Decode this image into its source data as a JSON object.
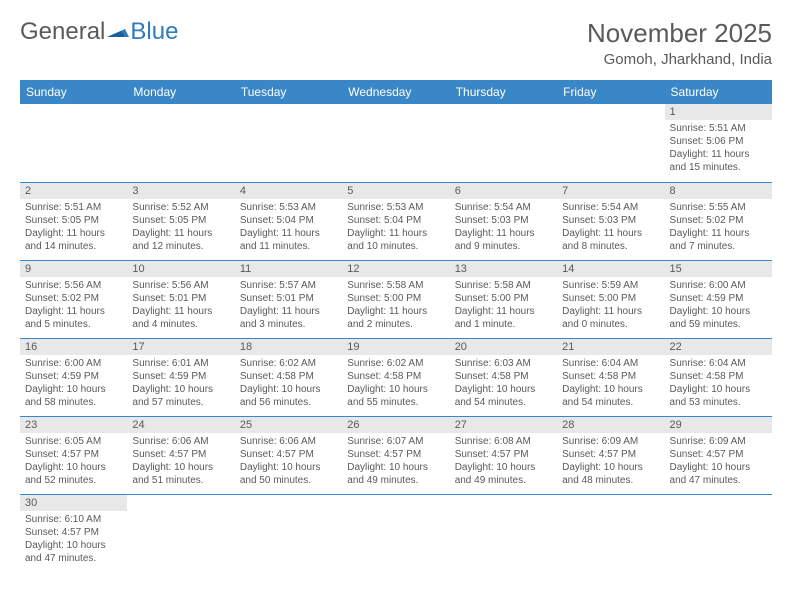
{
  "logo": {
    "part1": "General",
    "part2": "Blue"
  },
  "title": "November 2025",
  "location": "Gomoh, Jharkhand, India",
  "colors": {
    "header_bg": "#3a87c8",
    "header_fg": "#ffffff",
    "daynum_bg": "#e8e8e8",
    "text": "#5a5a5a",
    "rule": "#3a87c8",
    "logo_blue": "#2f7bbf"
  },
  "day_names": [
    "Sunday",
    "Monday",
    "Tuesday",
    "Wednesday",
    "Thursday",
    "Friday",
    "Saturday"
  ],
  "weeks": [
    [
      null,
      null,
      null,
      null,
      null,
      null,
      {
        "n": "1",
        "sr": "5:51 AM",
        "ss": "5:06 PM",
        "dl": "11 hours and 15 minutes."
      }
    ],
    [
      {
        "n": "2",
        "sr": "5:51 AM",
        "ss": "5:05 PM",
        "dl": "11 hours and 14 minutes."
      },
      {
        "n": "3",
        "sr": "5:52 AM",
        "ss": "5:05 PM",
        "dl": "11 hours and 12 minutes."
      },
      {
        "n": "4",
        "sr": "5:53 AM",
        "ss": "5:04 PM",
        "dl": "11 hours and 11 minutes."
      },
      {
        "n": "5",
        "sr": "5:53 AM",
        "ss": "5:04 PM",
        "dl": "11 hours and 10 minutes."
      },
      {
        "n": "6",
        "sr": "5:54 AM",
        "ss": "5:03 PM",
        "dl": "11 hours and 9 minutes."
      },
      {
        "n": "7",
        "sr": "5:54 AM",
        "ss": "5:03 PM",
        "dl": "11 hours and 8 minutes."
      },
      {
        "n": "8",
        "sr": "5:55 AM",
        "ss": "5:02 PM",
        "dl": "11 hours and 7 minutes."
      }
    ],
    [
      {
        "n": "9",
        "sr": "5:56 AM",
        "ss": "5:02 PM",
        "dl": "11 hours and 5 minutes."
      },
      {
        "n": "10",
        "sr": "5:56 AM",
        "ss": "5:01 PM",
        "dl": "11 hours and 4 minutes."
      },
      {
        "n": "11",
        "sr": "5:57 AM",
        "ss": "5:01 PM",
        "dl": "11 hours and 3 minutes."
      },
      {
        "n": "12",
        "sr": "5:58 AM",
        "ss": "5:00 PM",
        "dl": "11 hours and 2 minutes."
      },
      {
        "n": "13",
        "sr": "5:58 AM",
        "ss": "5:00 PM",
        "dl": "11 hours and 1 minute."
      },
      {
        "n": "14",
        "sr": "5:59 AM",
        "ss": "5:00 PM",
        "dl": "11 hours and 0 minutes."
      },
      {
        "n": "15",
        "sr": "6:00 AM",
        "ss": "4:59 PM",
        "dl": "10 hours and 59 minutes."
      }
    ],
    [
      {
        "n": "16",
        "sr": "6:00 AM",
        "ss": "4:59 PM",
        "dl": "10 hours and 58 minutes."
      },
      {
        "n": "17",
        "sr": "6:01 AM",
        "ss": "4:59 PM",
        "dl": "10 hours and 57 minutes."
      },
      {
        "n": "18",
        "sr": "6:02 AM",
        "ss": "4:58 PM",
        "dl": "10 hours and 56 minutes."
      },
      {
        "n": "19",
        "sr": "6:02 AM",
        "ss": "4:58 PM",
        "dl": "10 hours and 55 minutes."
      },
      {
        "n": "20",
        "sr": "6:03 AM",
        "ss": "4:58 PM",
        "dl": "10 hours and 54 minutes."
      },
      {
        "n": "21",
        "sr": "6:04 AM",
        "ss": "4:58 PM",
        "dl": "10 hours and 54 minutes."
      },
      {
        "n": "22",
        "sr": "6:04 AM",
        "ss": "4:58 PM",
        "dl": "10 hours and 53 minutes."
      }
    ],
    [
      {
        "n": "23",
        "sr": "6:05 AM",
        "ss": "4:57 PM",
        "dl": "10 hours and 52 minutes."
      },
      {
        "n": "24",
        "sr": "6:06 AM",
        "ss": "4:57 PM",
        "dl": "10 hours and 51 minutes."
      },
      {
        "n": "25",
        "sr": "6:06 AM",
        "ss": "4:57 PM",
        "dl": "10 hours and 50 minutes."
      },
      {
        "n": "26",
        "sr": "6:07 AM",
        "ss": "4:57 PM",
        "dl": "10 hours and 49 minutes."
      },
      {
        "n": "27",
        "sr": "6:08 AM",
        "ss": "4:57 PM",
        "dl": "10 hours and 49 minutes."
      },
      {
        "n": "28",
        "sr": "6:09 AM",
        "ss": "4:57 PM",
        "dl": "10 hours and 48 minutes."
      },
      {
        "n": "29",
        "sr": "6:09 AM",
        "ss": "4:57 PM",
        "dl": "10 hours and 47 minutes."
      }
    ],
    [
      {
        "n": "30",
        "sr": "6:10 AM",
        "ss": "4:57 PM",
        "dl": "10 hours and 47 minutes."
      },
      null,
      null,
      null,
      null,
      null,
      null
    ]
  ],
  "labels": {
    "sunrise": "Sunrise: ",
    "sunset": "Sunset: ",
    "daylight": "Daylight: "
  }
}
